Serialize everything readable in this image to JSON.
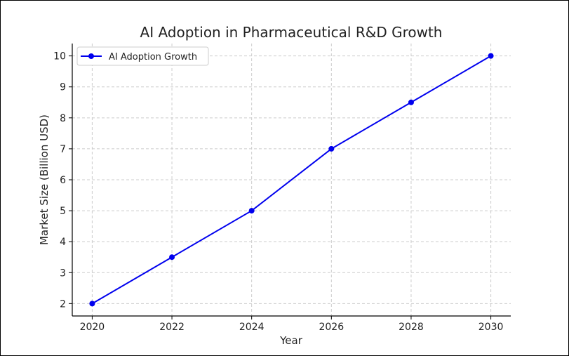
{
  "chart_data": {
    "type": "line",
    "title": "AI Adoption in Pharmaceutical R&D Growth",
    "xlabel": "Year",
    "ylabel": "Market Size (Billion USD)",
    "x": [
      2020,
      2022,
      2024,
      2026,
      2028,
      2030
    ],
    "series": [
      {
        "name": "AI Adoption Growth",
        "values": [
          2,
          3.5,
          5,
          7,
          8.5,
          10
        ],
        "color": "#0000ee",
        "marker": "circle"
      }
    ],
    "xticks": [
      2020,
      2022,
      2024,
      2026,
      2028,
      2030
    ],
    "yticks": [
      2,
      3,
      4,
      5,
      6,
      7,
      8,
      9,
      10
    ],
    "xlim": [
      2019.5,
      2030.5
    ],
    "ylim": [
      1.6,
      10.4
    ],
    "grid": true,
    "legend": "top-left"
  }
}
